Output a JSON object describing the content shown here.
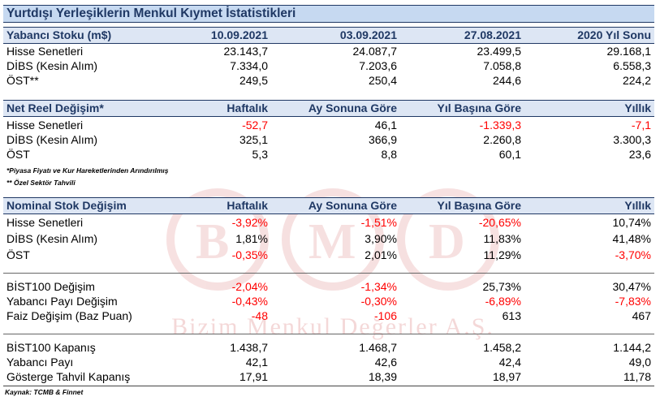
{
  "title": "Yurtdışı Yerleşiklerin Menkul Kıymet İstatistikleri",
  "watermark": {
    "text": "Bizim Menkul Değerler A.Ş.",
    "color": "#e8b4b4"
  },
  "accent_color": "#1f3864",
  "negative_color": "#ff0000",
  "sections": [
    {
      "header": [
        "Yabancı Stoku (m$)",
        "10.09.2021",
        "03.09.2021",
        "27.08.2021",
        "2020 Yıl Sonu"
      ],
      "rows": [
        [
          "Hisse Senetleri",
          "23.143,7",
          "24.087,7",
          "23.499,5",
          "29.168,1"
        ],
        [
          "DİBS (Kesin Alım)",
          "7.334,0",
          "7.203,6",
          "7.058,8",
          "6.558,3"
        ],
        [
          "ÖST**",
          "249,5",
          "250,4",
          "244,6",
          "224,2"
        ]
      ]
    },
    {
      "header": [
        "Net Reel Değişim*",
        "Haftalık",
        "Ay Sonuna Göre",
        "Yıl Başına Göre",
        "Yıllık"
      ],
      "rows": [
        [
          "Hisse Senetleri",
          "-52,7",
          "46,1",
          "-1.339,3",
          "-7,1"
        ],
        [
          "DİBS (Kesin Alım)",
          "325,1",
          "366,9",
          "2.260,8",
          "3.300,3"
        ],
        [
          "ÖST",
          "5,3",
          "8,8",
          "60,1",
          "23,6"
        ]
      ]
    },
    {
      "header": [
        "Nominal Stok Değişim",
        "Haftalık",
        "Ay Sonuna Göre",
        "Yıl Başına Göre",
        "Yıllık"
      ],
      "rows": [
        [
          "Hisse Senetleri",
          "-3,92%",
          "-1,51%",
          "-20,65%",
          "10,74%"
        ],
        [
          "DİBS (Kesin Alım)",
          "1,81%",
          "3,90%",
          "11,83%",
          "41,48%"
        ],
        [
          "ÖST",
          "-0,35%",
          "2,01%",
          "11,29%",
          "-3,70%"
        ]
      ]
    },
    {
      "rows": [
        [
          "BİST100 Değişim",
          "-2,04%",
          "-1,34%",
          "25,73%",
          "30,47%"
        ],
        [
          "Yabancı Payı Değişim",
          "-0,43%",
          "-0,30%",
          "-6,89%",
          "-7,83%"
        ],
        [
          "Faiz Değişim (Baz Puan)",
          "-48",
          "-106",
          "613",
          "467"
        ]
      ]
    },
    {
      "rows": [
        [
          "BİST100 Kapanış",
          "1.438,7",
          "1.468,7",
          "1.458,2",
          "1.144,2"
        ],
        [
          "Yabancı Payı",
          "42,1",
          "42,6",
          "42,4",
          "49,0"
        ],
        [
          "Gösterge Tahvil Kapanış",
          "17,91",
          "18,39",
          "18,97",
          "11,78"
        ]
      ]
    }
  ],
  "notes": [
    "*Piyasa Fiyatı ve Kur Hareketlerinden Arındırılmış",
    "** Özel Sektör Tahvili"
  ],
  "source": "Kaynak: TCMB & Finnet"
}
